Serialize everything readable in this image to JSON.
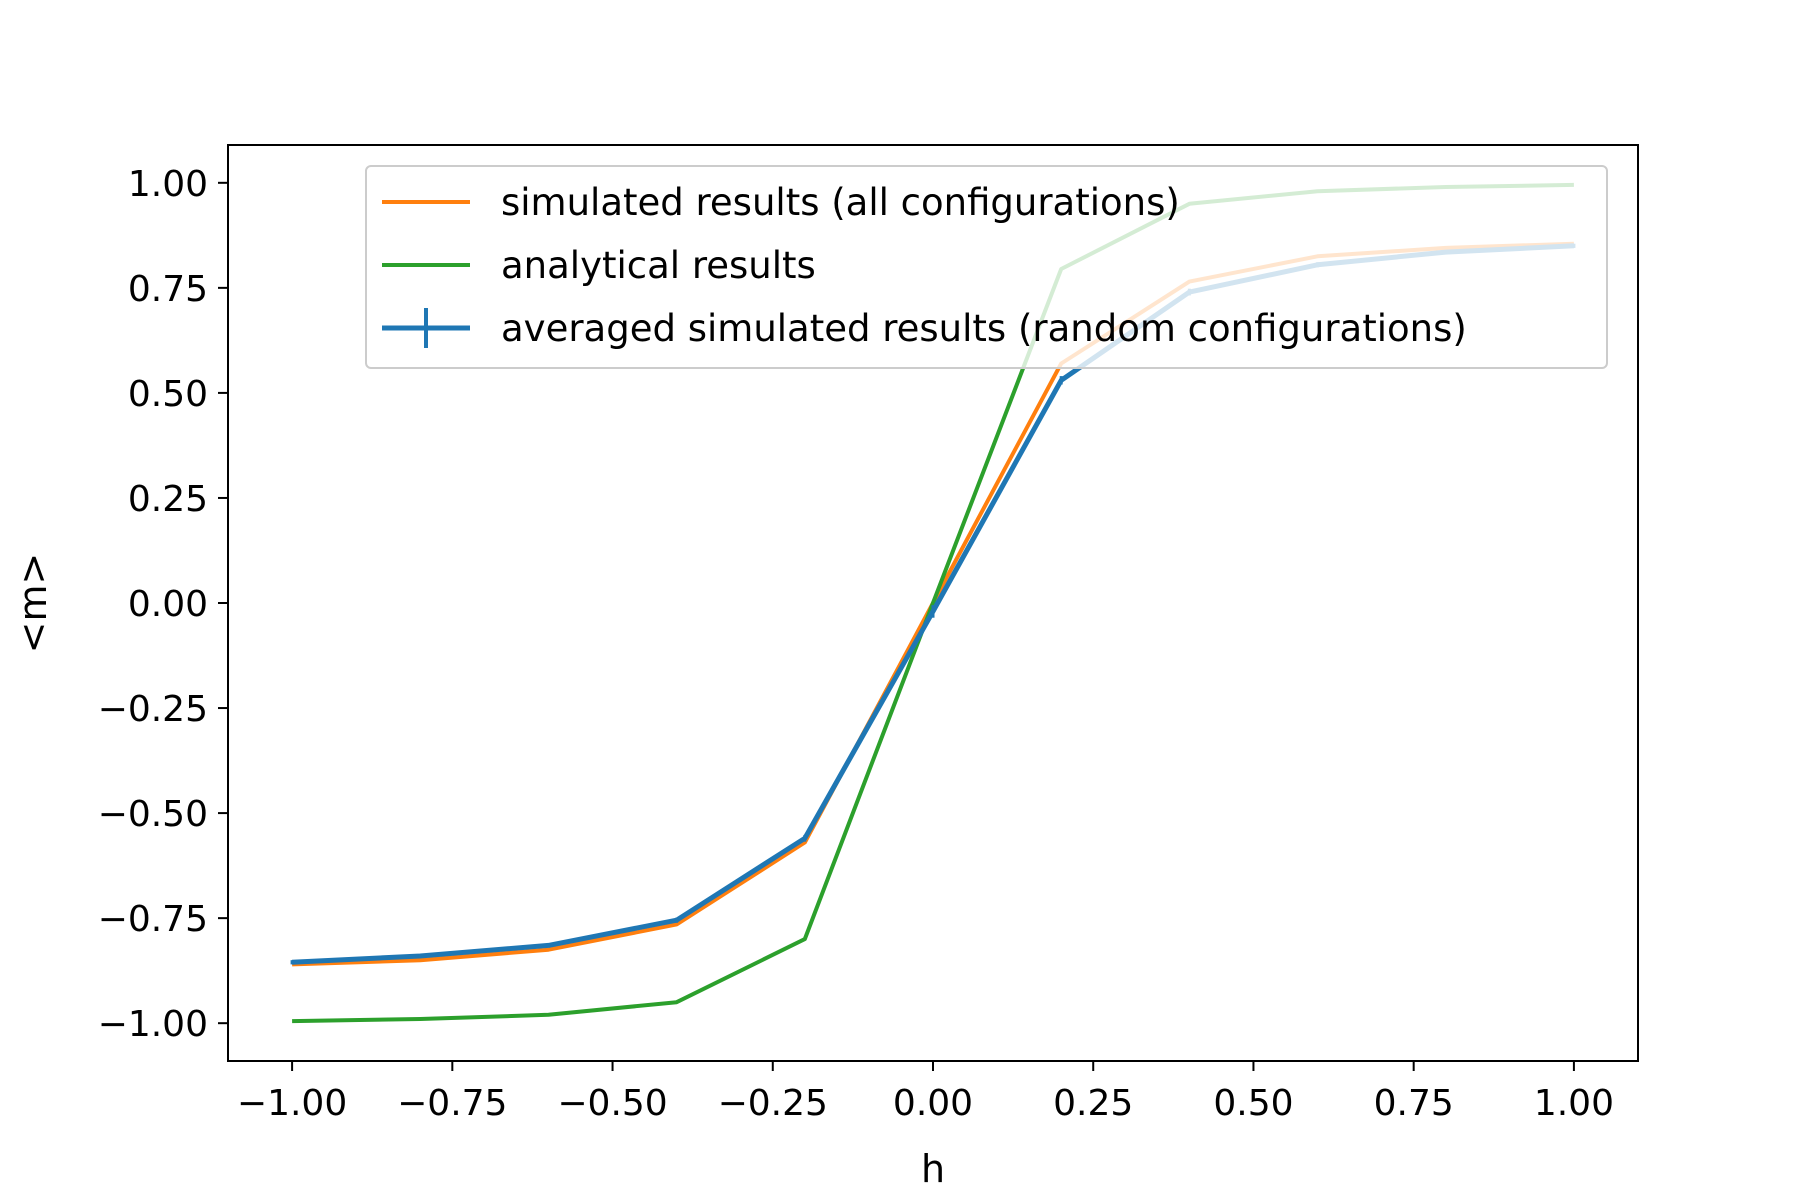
{
  "chart_data": {
    "type": "line",
    "title": "",
    "xlabel": "h",
    "ylabel": "<m>",
    "xlim": [
      -1.1,
      1.1
    ],
    "ylim": [
      -1.09,
      1.09
    ],
    "x_ticks": [
      "−1.00",
      "−0.75",
      "−0.50",
      "−0.25",
      "0.00",
      "0.25",
      "0.50",
      "0.75",
      "1.00"
    ],
    "x_tick_values": [
      -1.0,
      -0.75,
      -0.5,
      -0.25,
      0.0,
      0.25,
      0.5,
      0.75,
      1.0
    ],
    "y_ticks": [
      "−1.00",
      "−0.75",
      "−0.50",
      "−0.25",
      "0.00",
      "0.25",
      "0.50",
      "0.75",
      "1.00"
    ],
    "y_tick_values": [
      -1.0,
      -0.75,
      -0.5,
      -0.25,
      0.0,
      0.25,
      0.5,
      0.75,
      1.0
    ],
    "grid": false,
    "legend_position": "top-right",
    "x": [
      -1.0,
      -0.8,
      -0.6,
      -0.4,
      -0.2,
      0.0,
      0.2,
      0.4,
      0.6,
      0.8,
      1.0
    ],
    "series": [
      {
        "name": "simulated results (all configurations)",
        "color": "#ff7f0e",
        "style": "line",
        "values": [
          -0.86,
          -0.85,
          -0.825,
          -0.765,
          -0.57,
          0.0,
          0.57,
          0.765,
          0.825,
          0.845,
          0.855
        ]
      },
      {
        "name": "analytical results",
        "color": "#2ca02c",
        "style": "line",
        "values": [
          -0.995,
          -0.99,
          -0.98,
          -0.95,
          -0.8,
          0.0,
          0.795,
          0.95,
          0.98,
          0.99,
          0.995
        ]
      },
      {
        "name": "averaged simulated results (random configurations)",
        "color": "#1f77b4",
        "style": "errorbar",
        "values": [
          -0.855,
          -0.84,
          -0.815,
          -0.755,
          -0.56,
          -0.02,
          0.53,
          0.74,
          0.805,
          0.835,
          0.85
        ],
        "errors": [
          0.005,
          0.005,
          0.005,
          0.006,
          0.008,
          0.015,
          0.01,
          0.008,
          0.006,
          0.005,
          0.005
        ]
      }
    ]
  }
}
